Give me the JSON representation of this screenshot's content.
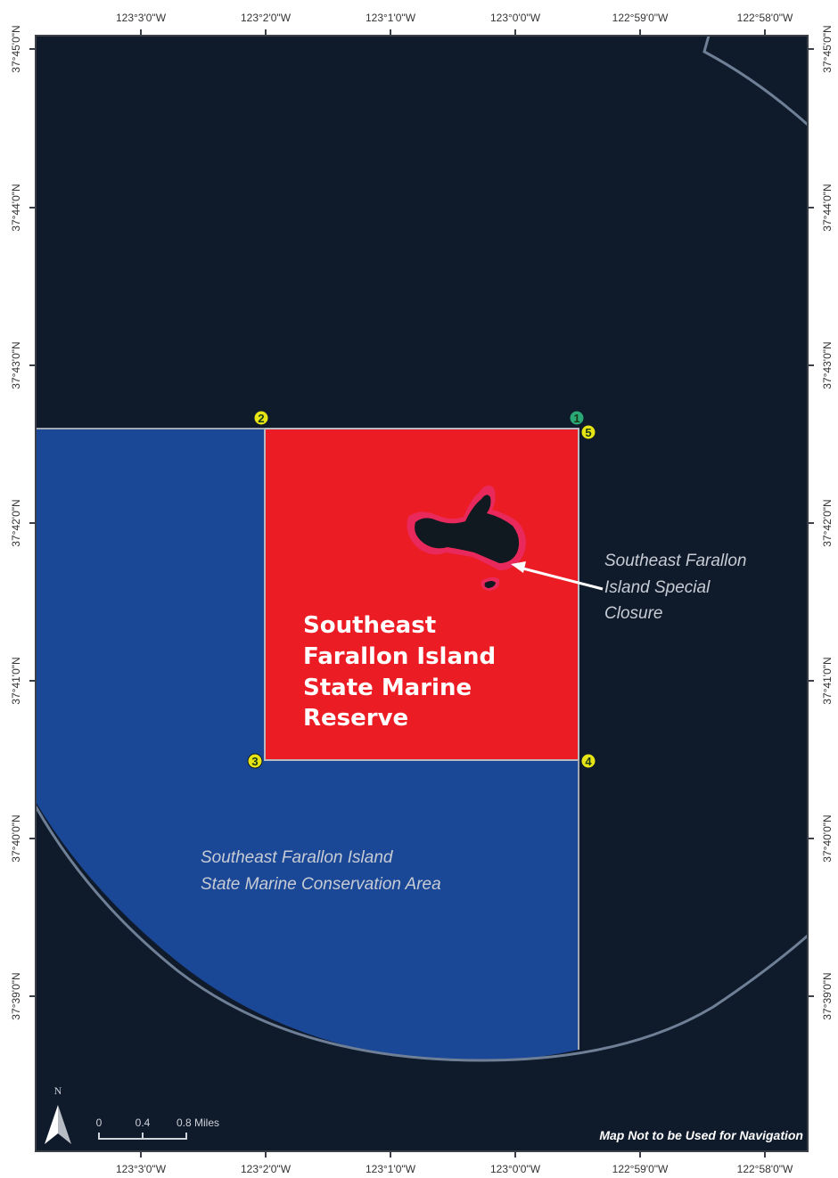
{
  "map": {
    "top_axis_labels": [
      "123°3'0\"W",
      "123°2'0\"W",
      "123°1'0\"W",
      "123°0'0\"W",
      "122°59'0\"W",
      "122°58'0\"W"
    ],
    "bottom_axis_labels": [
      "123°3'0\"W",
      "123°2'0\"W",
      "123°1'0\"W",
      "123°0'0\"W",
      "122°59'0\"W",
      "122°58'0\"W"
    ],
    "left_axis_labels": [
      "37°45'0\"N",
      "37°44'0\"N",
      "37°43'0\"N",
      "37°42'0\"N",
      "37°41'0\"N",
      "37°40'0\"N",
      "37°39'0\"N"
    ],
    "right_axis_labels": [
      "37°45'0\"N",
      "37°44'0\"N",
      "37°43'0\"N",
      "37°42'0\"N",
      "37°41'0\"N",
      "37°40'0\"N",
      "37°39'0\"N"
    ],
    "marine_reserve_title": [
      "Southeast",
      "Farallon Island",
      "State Marine",
      "Reserve"
    ],
    "conservation_area_label": [
      "Southeast  Farallon Island",
      "State Marine Conservation Area"
    ],
    "special_closure_label": [
      "Southeast  Farallon",
      "Island Special",
      "Closure"
    ],
    "boundary_markers": [
      "1",
      "2",
      "3",
      "4",
      "5"
    ],
    "scale_bar": {
      "labels": [
        "0",
        "0.4",
        "0.8 Miles"
      ]
    },
    "north_arrow": "N",
    "disclaimer": "Map Not to be Used for Navigation",
    "colors": {
      "ocean": "#0f1a2b",
      "marine_reserve": "#ec1c24",
      "conservation_area": "#1a4796",
      "special_closure": "#e8348a",
      "island": "#101820",
      "marker_fill": "#e6e414"
    }
  }
}
